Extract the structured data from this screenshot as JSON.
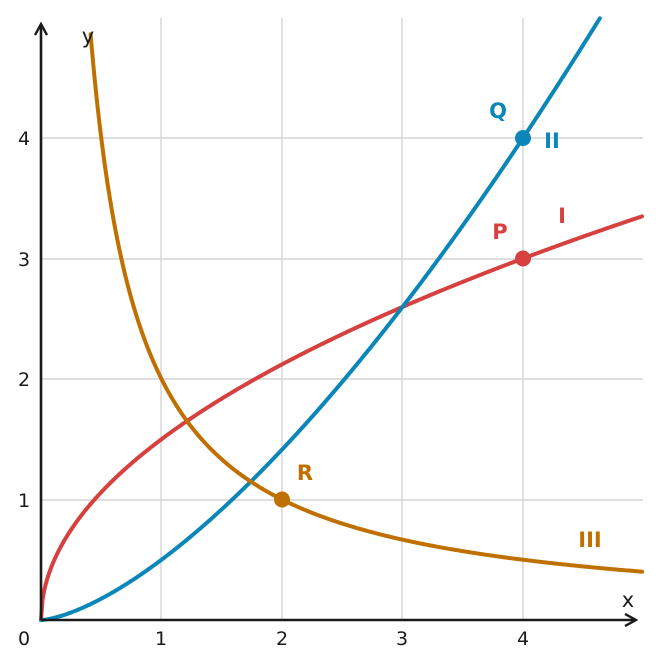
{
  "chart_data": {
    "type": "line",
    "title": "",
    "xlabel": "x",
    "ylabel": "y",
    "xlim": [
      0,
      5
    ],
    "ylim": [
      0,
      5
    ],
    "origin_label": "0",
    "xticks": [
      "1",
      "2",
      "3",
      "4"
    ],
    "yticks": [
      "1",
      "2",
      "3",
      "4"
    ],
    "grid": true,
    "series": [
      {
        "label": "I",
        "formula": "1.5*sqrt(x)",
        "color": "#d6403f"
      },
      {
        "label": "II",
        "formula": "0.5*x^1.5",
        "color": "#0b86b8"
      },
      {
        "label": "III",
        "formula": "2/x",
        "color": "#c07000"
      }
    ],
    "points": [
      {
        "label": "P",
        "x": 4,
        "y": 3,
        "color": "#d6403f"
      },
      {
        "label": "Q",
        "x": 4,
        "y": 4,
        "color": "#0b86b8"
      },
      {
        "label": "R",
        "x": 2,
        "y": 1,
        "color": "#c07000"
      }
    ]
  }
}
